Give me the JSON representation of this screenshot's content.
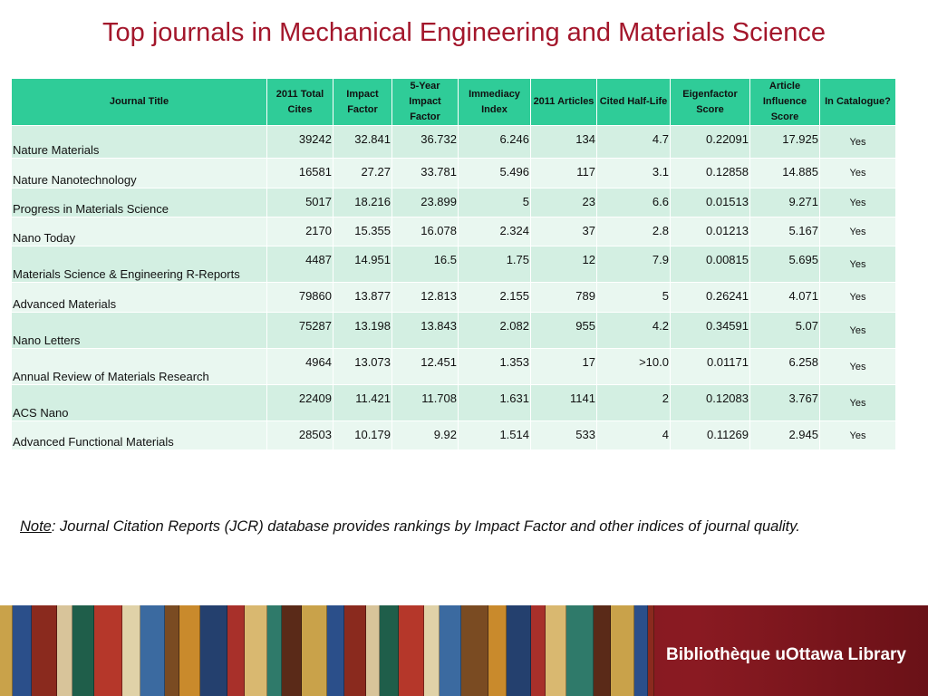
{
  "header": {
    "title": "Top journals in Mechanical Engineering and Materials Science"
  },
  "table": {
    "columns": [
      "Journal Title",
      "2011 Total Cites",
      "Impact Factor",
      "5-Year Impact Factor",
      "Immediacy Index",
      "2011 Articles",
      "Cited Half-Life",
      "Eigenfactor Score",
      "Article Influence Score",
      "In Catalogue?"
    ],
    "rows": [
      [
        "Nature Materials",
        "39242",
        "32.841",
        "36.732",
        "6.246",
        "134",
        "4.7",
        "0.22091",
        "17.925",
        "Yes"
      ],
      [
        "Nature Nanotechnology",
        "16581",
        "27.27",
        "33.781",
        "5.496",
        "117",
        "3.1",
        "0.12858",
        "14.885",
        "Yes"
      ],
      [
        "Progress in Materials Science",
        "5017",
        "18.216",
        "23.899",
        "5",
        "23",
        "6.6",
        "0.01513",
        "9.271",
        "Yes"
      ],
      [
        "Nano Today",
        "2170",
        "15.355",
        "16.078",
        "2.324",
        "37",
        "2.8",
        "0.01213",
        "5.167",
        "Yes"
      ],
      [
        "Materials Science & Engineering R-Reports",
        "4487",
        "14.951",
        "16.5",
        "1.75",
        "12",
        "7.9",
        "0.00815",
        "5.695",
        "Yes"
      ],
      [
        "Advanced Materials",
        "79860",
        "13.877",
        "12.813",
        "2.155",
        "789",
        "5",
        "0.26241",
        "4.071",
        "Yes"
      ],
      [
        "Nano Letters",
        "75287",
        "13.198",
        "13.843",
        "2.082",
        "955",
        "4.2",
        "0.34591",
        "5.07",
        "Yes"
      ],
      [
        "Annual Review of Materials Research",
        "4964",
        "13.073",
        "12.451",
        "1.353",
        "17",
        ">10.0",
        "0.01171",
        "6.258",
        "Yes"
      ],
      [
        "ACS Nano",
        "22409",
        "11.421",
        "11.708",
        "1.631",
        "1141",
        "2",
        "0.12083",
        "3.767",
        "Yes"
      ],
      [
        "Advanced Functional Materials",
        "28503",
        "10.179",
        "9.92",
        "1.514",
        "533",
        "4",
        "0.11269",
        "2.945",
        "Yes"
      ]
    ]
  },
  "note": {
    "label": "Note",
    "text": ":  Journal Citation Reports (JCR) database provides rankings by Impact Factor and other indices of journal quality."
  },
  "footer": {
    "logo": "Bibliothèque uOttawa Library"
  }
}
